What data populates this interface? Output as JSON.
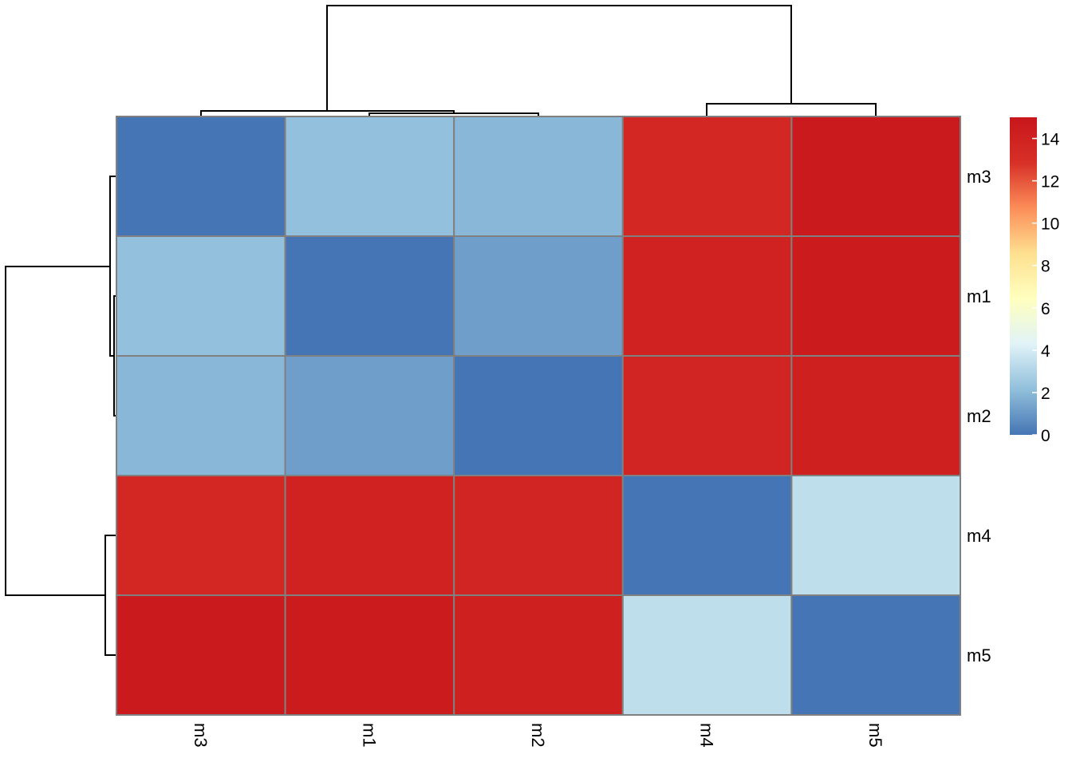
{
  "chart_data": {
    "type": "heatmap",
    "title": "",
    "xlabel": "",
    "ylabel": "",
    "columns": [
      "m3",
      "m1",
      "m2",
      "m4",
      "m5"
    ],
    "rows": [
      "m3",
      "m1",
      "m2",
      "m4",
      "m5"
    ],
    "values": [
      [
        0.0,
        2.2,
        1.9,
        13.6,
        14.7
      ],
      [
        2.2,
        0.0,
        1.2,
        14.0,
        14.6
      ],
      [
        1.9,
        1.2,
        0.0,
        13.8,
        14.2
      ],
      [
        13.6,
        14.0,
        13.8,
        0.0,
        3.4
      ],
      [
        14.7,
        14.6,
        14.2,
        3.4,
        0.0
      ]
    ],
    "colorbar": {
      "min": 0,
      "max": 15,
      "ticks": [
        "0",
        "2",
        "4",
        "6",
        "8",
        "10",
        "12",
        "14"
      ],
      "colors": [
        "#4575B4",
        "#91BFDB",
        "#E0F3F8",
        "#FFFFBF",
        "#FEE090",
        "#FC8D59",
        "#D73027",
        "#C8161B"
      ]
    },
    "legend": "right",
    "grid": false,
    "column_dendrogram": true,
    "row_dendrogram": true
  }
}
